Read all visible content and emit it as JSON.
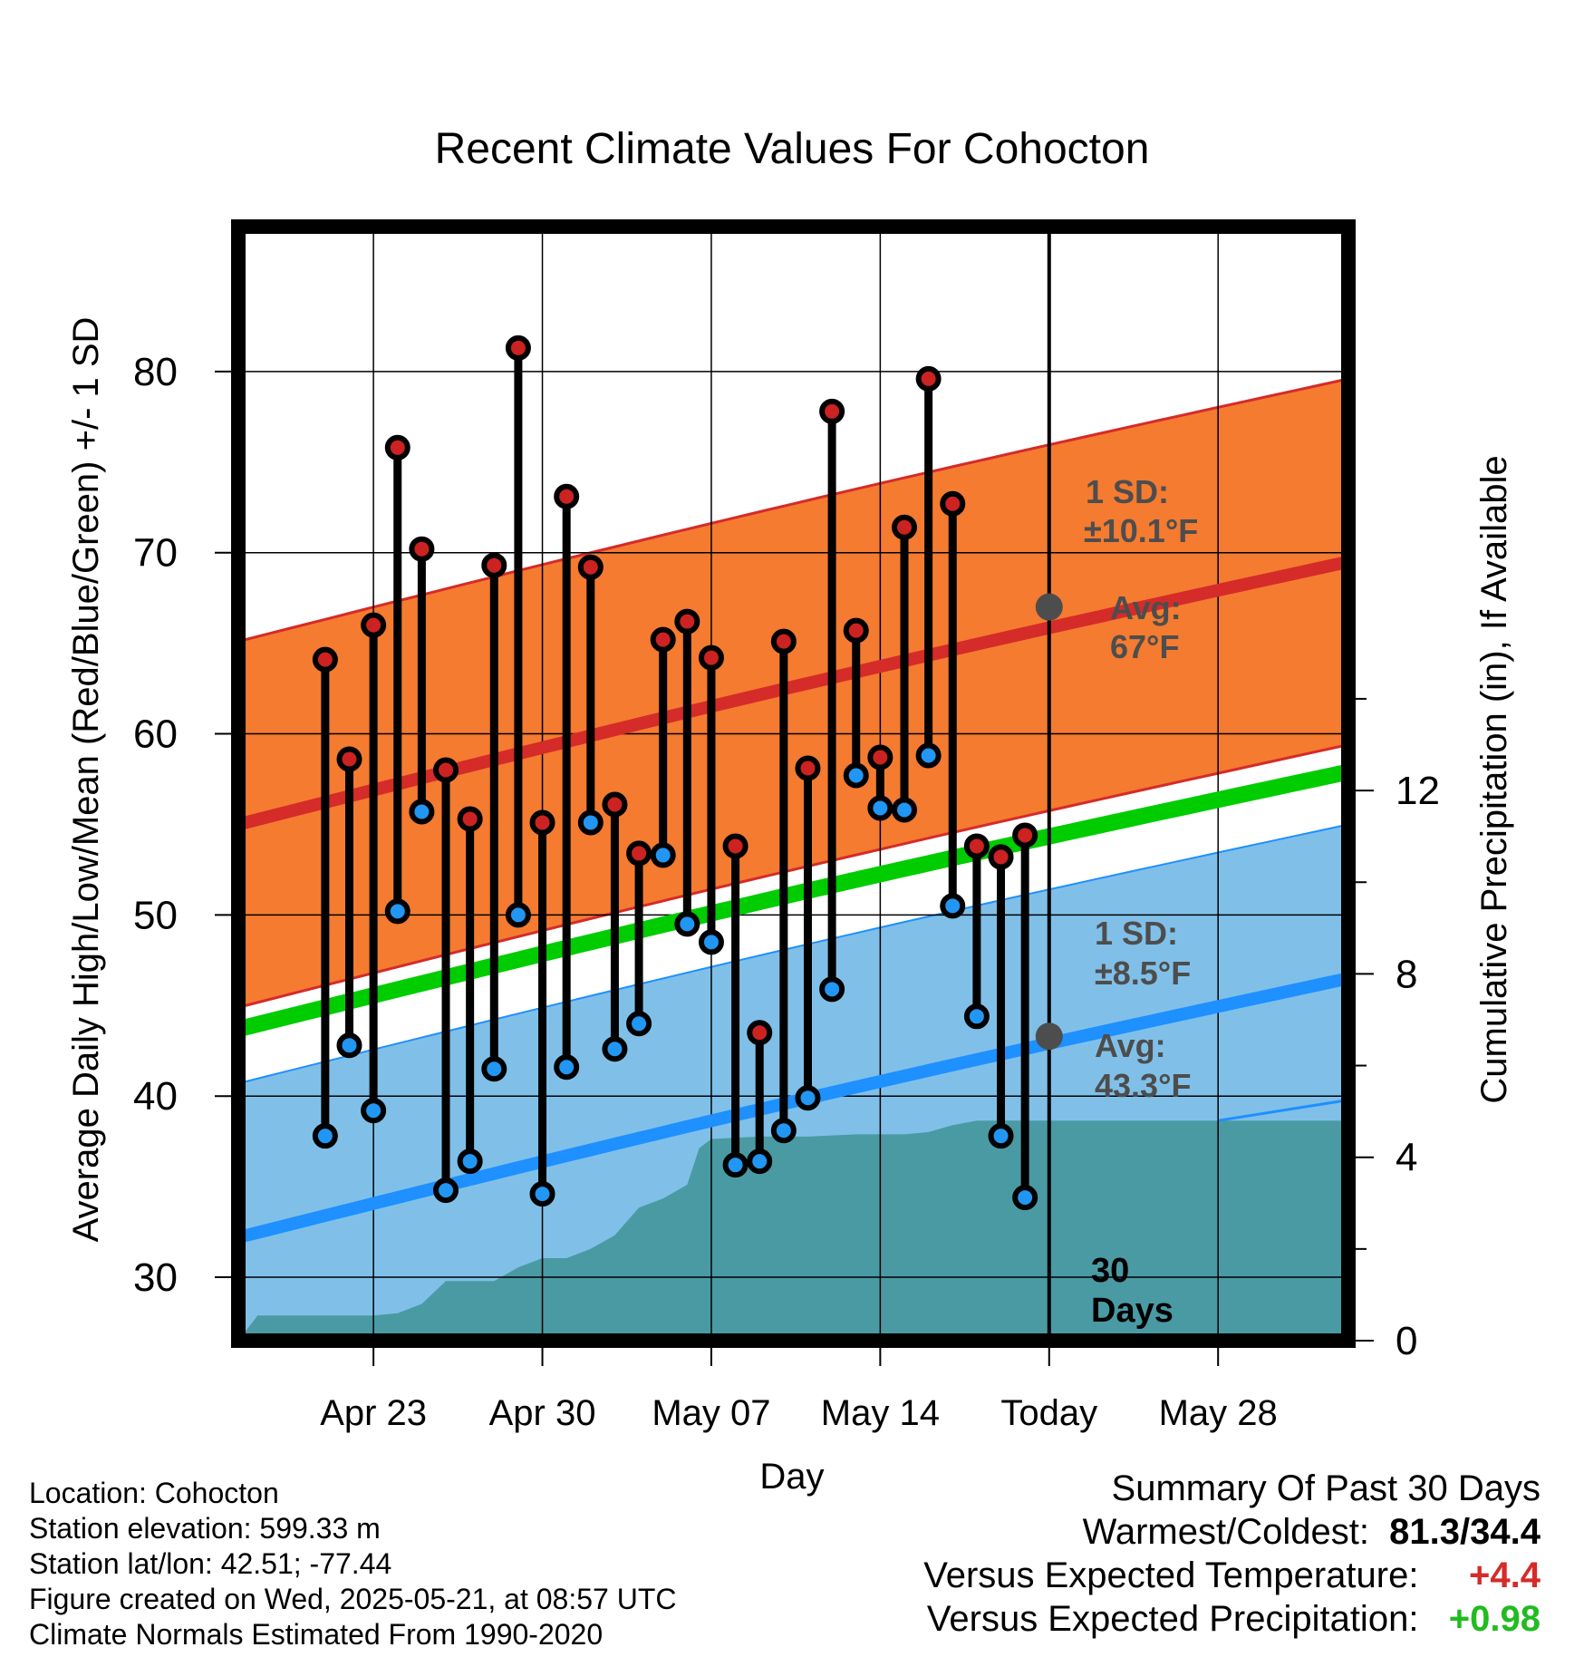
{
  "chart_data": {
    "type": "line",
    "title": "Recent Climate Values For Cohocton",
    "xlabel": "Day",
    "ylabel": "Average Daily High/Low/Mean (Red/Blue/Green) +/- 1 SD",
    "y2label": "Cumulative Precipitation (in), If Available",
    "ylim": [
      26.5,
      88
    ],
    "y2lim": [
      0,
      24.3
    ],
    "y_ticks": [
      30,
      40,
      50,
      60,
      70,
      80
    ],
    "y2_ticks": [
      0,
      4,
      8,
      12
    ],
    "x_range_days": [
      -33.6,
      12.4
    ],
    "x_ticks": [
      {
        "day": -28,
        "label": "Apr 23"
      },
      {
        "day": -21,
        "label": "Apr 30"
      },
      {
        "day": -14,
        "label": "May 07"
      },
      {
        "day": -7,
        "label": "May 14"
      },
      {
        "day": 0,
        "label": "Today"
      },
      {
        "day": 7,
        "label": "May 28"
      }
    ],
    "grid": true,
    "days": [
      -30,
      -29,
      -28,
      -27,
      -26,
      -25,
      -24,
      -23,
      -22,
      -21,
      -20,
      -19,
      -18,
      -17,
      -16,
      -15,
      -14,
      -13,
      -12,
      -11,
      -10,
      -9,
      -8,
      -7,
      -6,
      -5,
      -4,
      -3,
      -2,
      -1
    ],
    "highs": [
      64.1,
      58.6,
      66.0,
      75.8,
      70.2,
      58.0,
      55.3,
      69.3,
      81.3,
      55.1,
      73.1,
      69.2,
      56.1,
      53.4,
      65.2,
      66.2,
      64.2,
      53.8,
      43.5,
      65.1,
      58.1,
      77.8,
      65.7,
      58.7,
      71.4,
      79.6,
      72.7,
      53.8,
      53.2,
      54.4
    ],
    "lows": [
      37.8,
      42.8,
      39.2,
      50.2,
      55.7,
      34.8,
      36.4,
      41.5,
      50.0,
      34.6,
      41.6,
      55.1,
      42.6,
      44.0,
      53.3,
      49.5,
      48.5,
      36.2,
      36.4,
      38.1,
      39.9,
      45.9,
      57.7,
      55.9,
      55.8,
      58.8,
      50.5,
      44.4,
      37.8,
      34.4
    ],
    "normal_high": {
      "day_start": -33.6,
      "start": 55.0,
      "day_end": 12.4,
      "end": 69.5,
      "sd": 10.1,
      "today_avg": 67
    },
    "normal_low": {
      "day_start": -33.6,
      "start": 32.2,
      "day_end": 12.4,
      "end": 46.5,
      "sd": 8.5,
      "today_avg": 43.3
    },
    "normal_mean": {
      "day_start": -33.6,
      "start": 43.7,
      "day_end": 12.4,
      "end": 57.9
    },
    "precip_cumulative": {
      "days": [
        -33.6,
        -32.8,
        -28,
        -27,
        -26,
        -25,
        -23,
        -22,
        -21,
        -20,
        -19,
        -18,
        -17,
        -16,
        -15,
        -14.5,
        -14,
        -12,
        -10,
        -8,
        -6,
        -5,
        -4,
        -3,
        0,
        12.4
      ],
      "values": [
        0,
        0.55,
        0.55,
        0.6,
        0.8,
        1.3,
        1.3,
        1.6,
        1.8,
        1.8,
        2.0,
        2.3,
        2.9,
        3.1,
        3.4,
        4.2,
        4.4,
        4.45,
        4.45,
        4.5,
        4.5,
        4.55,
        4.7,
        4.8,
        4.8,
        4.8
      ]
    },
    "precip_normal_line": {
      "days": [
        7,
        12.4
      ],
      "values": [
        4.8,
        5.25
      ]
    },
    "annotations": {
      "high_sd_title": "1 SD:",
      "high_sd_value": "±10.1°F",
      "high_avg_title": "Avg:",
      "high_avg_value": "67°F",
      "low_sd_title": "1 SD:",
      "low_sd_value": "±8.5°F",
      "low_avg_title": "Avg:",
      "low_avg_value": "43.3°F",
      "window_days": "30",
      "window_label": "Days"
    }
  },
  "info": {
    "location": "Location: Cohocton",
    "elevation": "Station elevation: 599.33 m",
    "latlon": "Station lat/lon: 42.51; -77.44",
    "created": "Figure created on Wed, 2025-05-21, at 08:57 UTC",
    "normals": "Climate Normals Estimated From 1990-2020"
  },
  "summary": {
    "title": "Summary Of Past 30 Days",
    "warm_cold_label": "Warmest/Coldest:",
    "warm_cold_value": "81.3/34.4",
    "temp_label": "Versus Expected Temperature:",
    "temp_value": "+4.4",
    "precip_label": "Versus Expected Precipitation:",
    "precip_value": "+0.98"
  },
  "colors": {
    "high_band": "#f47b30",
    "high_line": "#d52b29",
    "low_band": "#80c0e8",
    "low_line": "#1e90ff",
    "mean_line": "#00cc00",
    "precip_fill": "#4a9aa4",
    "high_dot": "#cc2222",
    "low_dot": "#2196f3",
    "annotation": "#4d4d4d",
    "temp_delta": "#d52b29",
    "precip_delta": "#22bb22"
  }
}
